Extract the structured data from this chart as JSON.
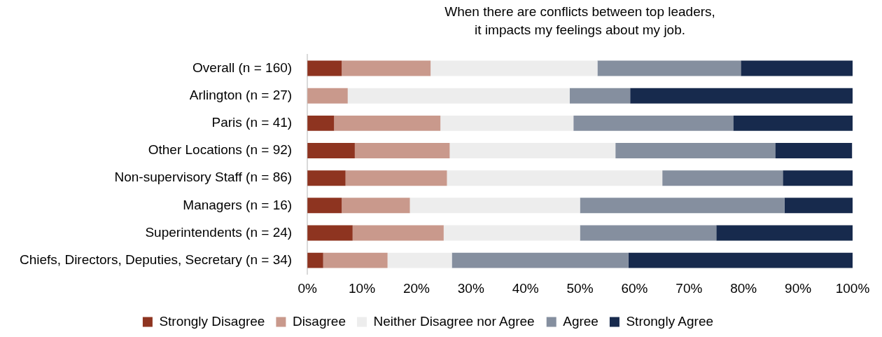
{
  "chart_data": {
    "type": "bar",
    "orientation": "horizontal",
    "stacked": true,
    "title": "When there are conflicts between top leaders,\nit impacts my feelings about my job.",
    "categories": [
      "Overall (n = 160)",
      "Arlington (n = 27)",
      "Paris (n = 41)",
      "Other Locations (n = 92)",
      "Non-supervisory Staff (n = 86)",
      "Managers (n = 16)",
      "Superintendents (n = 24)",
      "Chiefs, Directors, Deputies, Secretary (n = 34)"
    ],
    "series": [
      {
        "name": "Strongly Disagree",
        "color": "#8e3420",
        "values": [
          6.3,
          0,
          4.9,
          8.7,
          7.0,
          6.3,
          8.3,
          2.9
        ]
      },
      {
        "name": "Disagree",
        "color": "#c9998c",
        "values": [
          16.3,
          7.4,
          19.5,
          17.4,
          18.6,
          12.5,
          16.7,
          11.8
        ]
      },
      {
        "name": "Neither Disagree nor Agree",
        "color": "#ededed",
        "values": [
          30.6,
          40.7,
          24.4,
          30.4,
          39.5,
          31.2,
          25.0,
          11.8
        ]
      },
      {
        "name": "Agree",
        "color": "#858f9f",
        "values": [
          26.3,
          11.1,
          29.3,
          29.3,
          22.1,
          37.5,
          25.0,
          32.4
        ]
      },
      {
        "name": "Strongly Agree",
        "color": "#172a4d",
        "values": [
          20.6,
          40.8,
          22.0,
          14.1,
          12.8,
          12.5,
          25.0,
          41.2
        ]
      }
    ],
    "xlim": [
      0,
      100
    ],
    "xticks": [
      {
        "value": 0,
        "label": "0%"
      },
      {
        "value": 10,
        "label": "10%"
      },
      {
        "value": 20,
        "label": "20%"
      },
      {
        "value": 30,
        "label": "30%"
      },
      {
        "value": 40,
        "label": "40%"
      },
      {
        "value": 50,
        "label": "50%"
      },
      {
        "value": 60,
        "label": "60%"
      },
      {
        "value": 70,
        "label": "70%"
      },
      {
        "value": 80,
        "label": "80%"
      },
      {
        "value": 90,
        "label": "90%"
      },
      {
        "value": 100,
        "label": "100%"
      }
    ],
    "grid": false,
    "legend": "bottom"
  }
}
